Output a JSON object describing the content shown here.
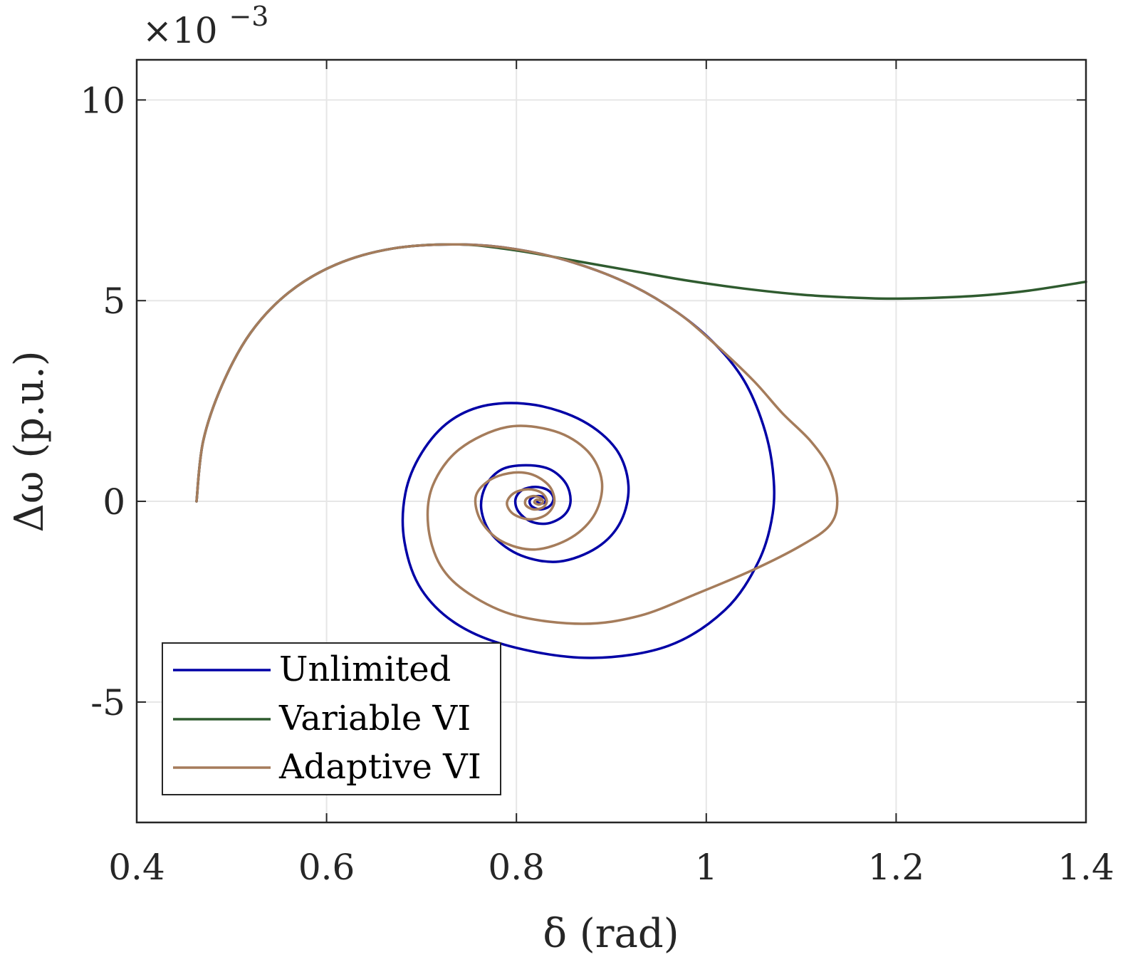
{
  "chart_data": {
    "type": "line",
    "xlabel": "δ (rad)",
    "ylabel": "Δω (p.u.)",
    "y_multiplier_label": "×10",
    "y_multiplier_exponent": "−3",
    "xlim": [
      0.4,
      1.4
    ],
    "ylim": [
      -8,
      11
    ],
    "grid": true,
    "legend_position": "bottom-left",
    "x_ticks": [
      0.4,
      0.6,
      0.8,
      1.0,
      1.2,
      1.4
    ],
    "x_tick_labels": [
      "0.4",
      "0.6",
      "0.8",
      "1",
      "1.2",
      "1.4"
    ],
    "y_ticks": [
      -5,
      0,
      5,
      10
    ],
    "y_tick_labels": [
      "-5",
      "0",
      "5",
      "10"
    ],
    "series": [
      {
        "name": "Unlimited",
        "color": "#0000a6",
        "points": [
          [
            0.463,
            0.0
          ],
          [
            0.47,
            1.5
          ],
          [
            0.49,
            2.9
          ],
          [
            0.52,
            4.2
          ],
          [
            0.56,
            5.2
          ],
          [
            0.61,
            5.9
          ],
          [
            0.67,
            6.3
          ],
          [
            0.74,
            6.4
          ],
          [
            0.8,
            6.28
          ],
          [
            0.86,
            5.95
          ],
          [
            0.92,
            5.4
          ],
          [
            0.97,
            4.7
          ],
          [
            1.01,
            3.9
          ],
          [
            1.04,
            3.0
          ],
          [
            1.06,
            1.9
          ],
          [
            1.07,
            0.8
          ],
          [
            1.07,
            -0.3
          ],
          [
            1.055,
            -1.5
          ],
          [
            1.02,
            -2.7
          ],
          [
            0.96,
            -3.6
          ],
          [
            0.88,
            -3.9
          ],
          [
            0.8,
            -3.65
          ],
          [
            0.74,
            -3.1
          ],
          [
            0.7,
            -2.2
          ],
          [
            0.682,
            -1.0
          ],
          [
            0.683,
            0.2
          ],
          [
            0.7,
            1.2
          ],
          [
            0.73,
            2.0
          ],
          [
            0.77,
            2.4
          ],
          [
            0.82,
            2.4
          ],
          [
            0.87,
            2.0
          ],
          [
            0.905,
            1.3
          ],
          [
            0.918,
            0.4
          ],
          [
            0.91,
            -0.5
          ],
          [
            0.885,
            -1.15
          ],
          [
            0.845,
            -1.5
          ],
          [
            0.805,
            -1.35
          ],
          [
            0.775,
            -0.85
          ],
          [
            0.763,
            -0.2
          ],
          [
            0.768,
            0.4
          ],
          [
            0.785,
            0.8
          ],
          [
            0.81,
            0.9
          ],
          [
            0.835,
            0.8
          ],
          [
            0.852,
            0.45
          ],
          [
            0.857,
            0.0
          ],
          [
            0.85,
            -0.35
          ],
          [
            0.833,
            -0.55
          ],
          [
            0.815,
            -0.5
          ],
          [
            0.802,
            -0.25
          ],
          [
            0.799,
            0.05
          ],
          [
            0.806,
            0.28
          ],
          [
            0.82,
            0.36
          ],
          [
            0.833,
            0.28
          ],
          [
            0.839,
            0.08
          ],
          [
            0.835,
            -0.12
          ],
          [
            0.825,
            -0.2
          ],
          [
            0.816,
            -0.12
          ],
          [
            0.814,
            0.02
          ],
          [
            0.819,
            0.12
          ],
          [
            0.827,
            0.12
          ],
          [
            0.831,
            0.03
          ],
          [
            0.828,
            -0.05
          ],
          [
            0.823,
            -0.04
          ],
          [
            0.822,
            0.02
          ],
          [
            0.825,
            0.03
          ]
        ]
      },
      {
        "name": "Variable VI",
        "color": "#2f5b2f",
        "points": [
          [
            0.463,
            0.0
          ],
          [
            0.47,
            1.5
          ],
          [
            0.49,
            2.9
          ],
          [
            0.52,
            4.2
          ],
          [
            0.56,
            5.2
          ],
          [
            0.61,
            5.9
          ],
          [
            0.67,
            6.3
          ],
          [
            0.74,
            6.4
          ],
          [
            0.8,
            6.25
          ],
          [
            0.86,
            6.0
          ],
          [
            0.92,
            5.75
          ],
          [
            0.98,
            5.5
          ],
          [
            1.04,
            5.3
          ],
          [
            1.1,
            5.15
          ],
          [
            1.15,
            5.08
          ],
          [
            1.19,
            5.05
          ],
          [
            1.24,
            5.07
          ],
          [
            1.29,
            5.13
          ],
          [
            1.34,
            5.25
          ],
          [
            1.4,
            5.47
          ]
        ]
      },
      {
        "name": "Adaptive VI",
        "color": "#a57c5b",
        "points": [
          [
            0.463,
            0.0
          ],
          [
            0.47,
            1.5
          ],
          [
            0.49,
            2.9
          ],
          [
            0.52,
            4.2
          ],
          [
            0.56,
            5.2
          ],
          [
            0.61,
            5.9
          ],
          [
            0.67,
            6.3
          ],
          [
            0.74,
            6.4
          ],
          [
            0.8,
            6.28
          ],
          [
            0.86,
            5.95
          ],
          [
            0.92,
            5.4
          ],
          [
            0.97,
            4.7
          ],
          [
            1.01,
            3.9
          ],
          [
            1.05,
            3.0
          ],
          [
            1.08,
            2.2
          ],
          [
            1.11,
            1.5
          ],
          [
            1.13,
            0.8
          ],
          [
            1.138,
            0.0
          ],
          [
            1.13,
            -0.6
          ],
          [
            1.1,
            -1.1
          ],
          [
            1.05,
            -1.7
          ],
          [
            0.99,
            -2.3
          ],
          [
            0.93,
            -2.85
          ],
          [
            0.87,
            -3.05
          ],
          [
            0.8,
            -2.85
          ],
          [
            0.75,
            -2.3
          ],
          [
            0.72,
            -1.6
          ],
          [
            0.707,
            -0.6
          ],
          [
            0.712,
            0.4
          ],
          [
            0.74,
            1.3
          ],
          [
            0.79,
            1.85
          ],
          [
            0.84,
            1.75
          ],
          [
            0.875,
            1.25
          ],
          [
            0.89,
            0.5
          ],
          [
            0.883,
            -0.3
          ],
          [
            0.858,
            -0.9
          ],
          [
            0.82,
            -1.2
          ],
          [
            0.785,
            -1.0
          ],
          [
            0.763,
            -0.5
          ],
          [
            0.757,
            0.1
          ],
          [
            0.77,
            0.5
          ],
          [
            0.792,
            0.7
          ],
          [
            0.815,
            0.68
          ],
          [
            0.834,
            0.4
          ],
          [
            0.84,
            0.0
          ],
          [
            0.832,
            -0.32
          ],
          [
            0.815,
            -0.45
          ],
          [
            0.797,
            -0.32
          ],
          [
            0.79,
            -0.05
          ],
          [
            0.797,
            0.2
          ],
          [
            0.812,
            0.3
          ],
          [
            0.826,
            0.22
          ],
          [
            0.832,
            0.02
          ],
          [
            0.828,
            -0.15
          ],
          [
            0.818,
            -0.2
          ],
          [
            0.81,
            -0.1
          ],
          [
            0.81,
            0.05
          ],
          [
            0.817,
            0.13
          ],
          [
            0.825,
            0.09
          ],
          [
            0.828,
            -0.02
          ],
          [
            0.824,
            -0.08
          ],
          [
            0.819,
            -0.03
          ],
          [
            0.821,
            0.04
          ],
          [
            0.825,
            0.02
          ]
        ]
      }
    ]
  }
}
